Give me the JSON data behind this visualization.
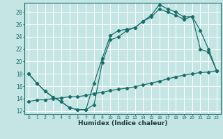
{
  "title": "",
  "xlabel": "Humidex (Indice chaleur)",
  "xlim": [
    -0.5,
    23.5
  ],
  "ylim": [
    11.5,
    29.5
  ],
  "yticks": [
    12,
    14,
    16,
    18,
    20,
    22,
    24,
    26,
    28
  ],
  "xticks": [
    0,
    1,
    2,
    3,
    4,
    5,
    6,
    7,
    8,
    9,
    10,
    11,
    12,
    13,
    14,
    15,
    16,
    17,
    18,
    19,
    20,
    21,
    22,
    23
  ],
  "bg_color": "#c5e5e5",
  "grid_color": "#ffffff",
  "line_color": "#1a6e6a",
  "line1_x": [
    0,
    1,
    2,
    3,
    4,
    5,
    6,
    7,
    8,
    9,
    10,
    11,
    12,
    13,
    14,
    15,
    16,
    17,
    18,
    19,
    20,
    21,
    22,
    23
  ],
  "line1_y": [
    18,
    16.5,
    15.2,
    14.2,
    13.5,
    12.5,
    12.2,
    12.2,
    16.5,
    20.5,
    24.2,
    25.0,
    25.2,
    25.5,
    26.5,
    27.5,
    29.2,
    28.5,
    28.0,
    27.2,
    27.3,
    25.0,
    22.0,
    18.5
  ],
  "line2_x": [
    0,
    1,
    2,
    3,
    4,
    5,
    6,
    7,
    8,
    9,
    10,
    11,
    12,
    13,
    14,
    15,
    16,
    17,
    18,
    19,
    20,
    21,
    22,
    23
  ],
  "line2_y": [
    18,
    16.5,
    15.2,
    14.2,
    13.5,
    12.5,
    12.2,
    12.2,
    13.0,
    19.8,
    23.5,
    24.0,
    25.0,
    25.5,
    26.5,
    27.2,
    28.5,
    28.0,
    27.5,
    26.8,
    27.3,
    22.0,
    21.5,
    18.5
  ],
  "line3_x": [
    0,
    1,
    2,
    3,
    4,
    5,
    6,
    7,
    8,
    9,
    10,
    11,
    12,
    13,
    14,
    15,
    16,
    17,
    18,
    19,
    20,
    21,
    22,
    23
  ],
  "line3_y": [
    13.5,
    13.8,
    13.8,
    14.0,
    14.1,
    14.3,
    14.3,
    14.5,
    14.8,
    15.0,
    15.3,
    15.5,
    15.7,
    15.9,
    16.2,
    16.5,
    16.8,
    17.2,
    17.5,
    17.8,
    18.0,
    18.2,
    18.3,
    18.5
  ]
}
